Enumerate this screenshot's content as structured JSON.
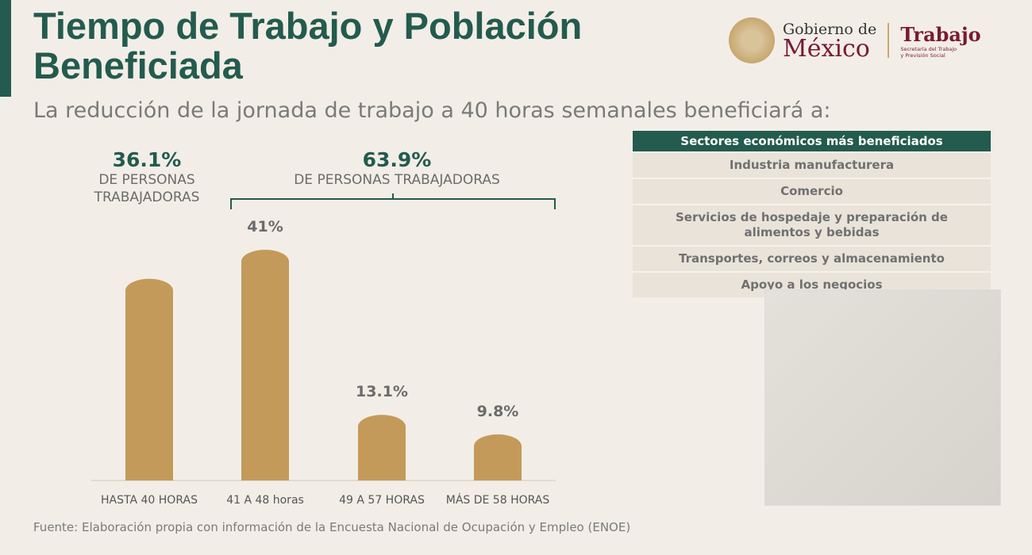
{
  "header": {
    "title_line1": "Tiempo de Trabajo y Población",
    "title_line2": "Beneficiada",
    "subtitle": "La reducción de la jornada de trabajo a 40 horas semanales beneficiará a:"
  },
  "logo": {
    "gob_line1": "Gobierno de",
    "gob_line2": "México",
    "trabajo": "Trabajo",
    "trabajo_sub1": "Secretaría del Trabajo",
    "trabajo_sub2": "y Previsión Social"
  },
  "stats": [
    {
      "pct": "36.1%",
      "line1": "DE PERSONAS",
      "line2": "TRABAJADORAS"
    },
    {
      "pct": "63.9%",
      "line1": "DE PERSONAS TRABAJADORAS"
    }
  ],
  "chart_data": {
    "type": "bar",
    "categories": [
      "HASTA 40 HORAS",
      "41 A 48 horas",
      "49 A 57 HORAS",
      "MÁS DE 58 HORAS"
    ],
    "values": [
      36.1,
      41,
      13.1,
      9.8
    ],
    "labels": [
      "",
      "41%",
      "13.1%",
      "9.8%"
    ],
    "ylim": [
      0,
      41
    ],
    "grid": false,
    "bar_color": "#c49a5a"
  },
  "table": {
    "header": "Sectores económicos más beneficiados",
    "rows": [
      "Industria manufacturera",
      "Comercio",
      "Servicios de hospedaje y preparación de alimentos y bebidas",
      "Transportes, correos y almacenamiento",
      "Apoyo a los negocios"
    ]
  },
  "colors": {
    "primary": "#235b4e",
    "accent": "#7a1a32",
    "bar": "#c49a5a"
  },
  "source": "Fuente: Elaboración propia con información de la Encuesta Nacional de Ocupación y Empleo (ENOE)"
}
